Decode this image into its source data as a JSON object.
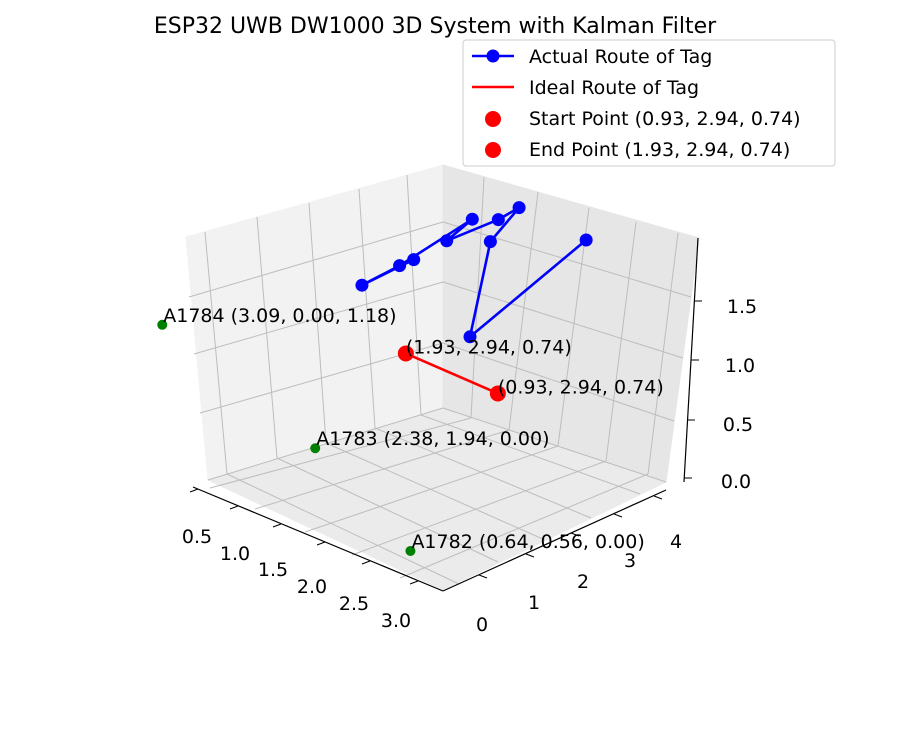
{
  "chart_data": {
    "type": "line3d",
    "title": "ESP32 UWB DW1000 3D System with Kalman Filter",
    "axes": {
      "x": {
        "ticks": [
          "0.5",
          "1.0",
          "1.5",
          "2.0",
          "2.5",
          "3.0"
        ]
      },
      "y": {
        "ticks": [
          "0",
          "1",
          "2",
          "3",
          "4"
        ]
      },
      "z": {
        "ticks": [
          "0.0",
          "0.5",
          "1.0",
          "1.5"
        ]
      }
    },
    "legend": {
      "placement": "top-right",
      "entries": [
        {
          "key": "actual",
          "label": "Actual Route of Tag",
          "color": "#0000ff",
          "marker": "line-dot"
        },
        {
          "key": "ideal",
          "label": "Ideal Route of Tag",
          "color": "#ff0000",
          "marker": "line"
        },
        {
          "key": "start",
          "label": "Start Point (0.93, 2.94, 0.74)",
          "color": "#ff0000",
          "marker": "dot"
        },
        {
          "key": "end",
          "label": "End Point (1.93, 2.94, 0.74)",
          "color": "#ff0000",
          "marker": "dot"
        }
      ]
    },
    "series": [
      {
        "name": "Actual Route of Tag",
        "color": "#0000ff",
        "points": [
          {
            "x": 0.8,
            "y": 4.5,
            "z": 1.75
          },
          {
            "x": 1.05,
            "y": 2.55,
            "z": 1.25
          },
          {
            "x": 1.48,
            "y": 3.8,
            "z": 1.65
          },
          {
            "x": 1.43,
            "y": 4.3,
            "z": 1.85
          },
          {
            "x": 1.55,
            "y": 4.1,
            "z": 1.75
          },
          {
            "x": 1.95,
            "y": 3.8,
            "z": 1.5
          },
          {
            "x": 1.98,
            "y": 4.4,
            "z": 1.55
          },
          {
            "x": 2.35,
            "y": 3.6,
            "z": 1.2
          },
          {
            "x": 2.55,
            "y": 3.2,
            "z": 1.05
          },
          {
            "x": 2.2,
            "y": 3.6,
            "z": 1.3
          }
        ]
      },
      {
        "name": "Ideal Route of Tag",
        "color": "#ff0000",
        "points": [
          {
            "x": 0.93,
            "y": 2.94,
            "z": 0.74
          },
          {
            "x": 1.93,
            "y": 2.94,
            "z": 0.74
          }
        ]
      }
    ],
    "markers": [
      {
        "key": "start",
        "label": "(0.93, 2.94, 0.74)",
        "x": 0.93,
        "y": 2.94,
        "z": 0.74,
        "color": "#ff0000"
      },
      {
        "key": "end",
        "label": "(1.93, 2.94, 0.74)",
        "x": 1.93,
        "y": 2.94,
        "z": 0.74,
        "color": "#ff0000"
      }
    ],
    "anchors": [
      {
        "key": "a1782",
        "label": "A1782 (0.64, 0.56, 0.00)",
        "x": 0.64,
        "y": 0.56,
        "z": 0.0,
        "color": "#008000"
      },
      {
        "key": "a1783",
        "label": "A1783 (2.38, 1.94, 0.00)",
        "x": 2.38,
        "y": 1.94,
        "z": 0.0,
        "color": "#008000"
      },
      {
        "key": "a1784",
        "label": "A1784 (3.09, 0.00, 1.18)",
        "x": 3.09,
        "y": 0.0,
        "z": 1.18,
        "color": "#008000"
      }
    ]
  }
}
